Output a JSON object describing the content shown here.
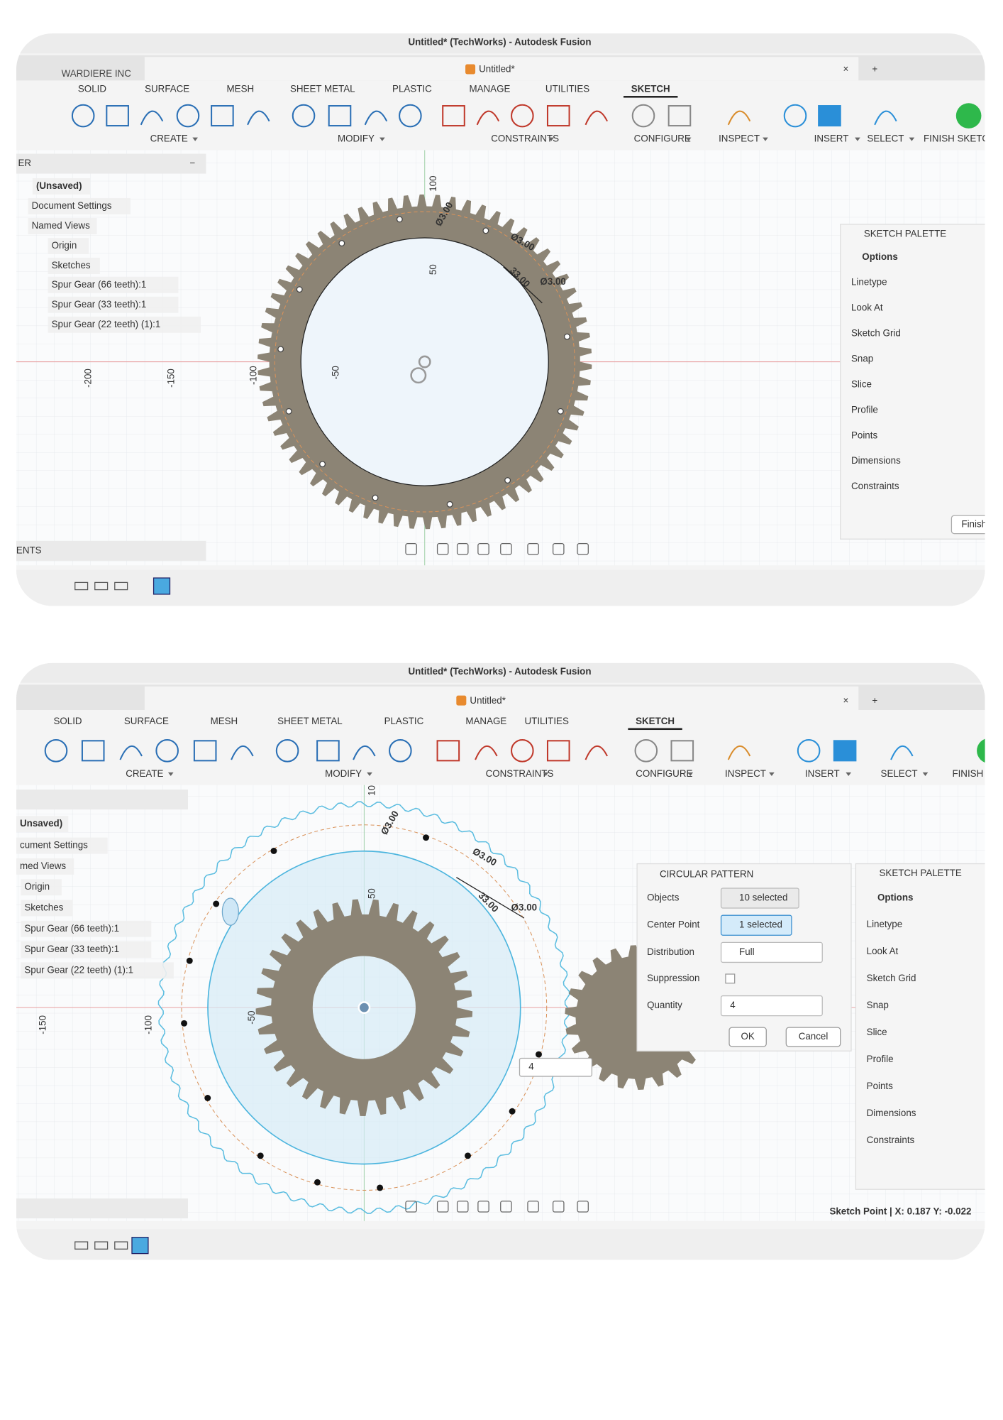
{
  "screens": [
    {
      "window_title": "Untitled* (TechWorks) - Autodesk Fusion",
      "document_tab": "Untitled*",
      "watermark": "WARDIERE INC",
      "toolbar_tabs": [
        "SOLID",
        "SURFACE",
        "MESH",
        "SHEET METAL",
        "PLASTIC",
        "MANAGE",
        "UTILITIES",
        "SKETCH"
      ],
      "toolbar_groups": [
        "CREATE",
        "MODIFY",
        "CONSTRAINTS",
        "CONFIGURE",
        "INSPECT",
        "INSERT",
        "SELECT",
        "FINISH SKETCH"
      ],
      "browser": {
        "header": "ER",
        "items": [
          "(Unsaved)",
          "Document Settings",
          "Named Views",
          "Origin",
          "Sketches",
          "Spur Gear (66 teeth):1",
          "Spur Gear (33 teeth):1",
          "Spur Gear (22 teeth) (1):1"
        ]
      },
      "comments": "ENTS",
      "axis_labels": [
        "100",
        "50",
        "-200",
        "-150",
        "-100",
        "-50"
      ],
      "dimensions": [
        "Ø3.00",
        "Ø3.00",
        "33.00",
        "Ø3.00"
      ],
      "palette": {
        "title": "SKETCH PALETTE",
        "section": "Options",
        "rows": [
          "Linetype",
          "Look At",
          "Sketch Grid",
          "Snap",
          "Slice",
          "Profile",
          "Points",
          "Dimensions",
          "Constraints"
        ],
        "button": "Finish"
      }
    },
    {
      "window_title": "Untitled* (TechWorks) - Autodesk Fusion",
      "document_tab": "Untitled*",
      "toolbar_tabs": [
        "SOLID",
        "SURFACE",
        "MESH",
        "SHEET METAL",
        "PLASTIC",
        "MANAGE",
        "UTILITIES",
        "SKETCH"
      ],
      "toolbar_groups": [
        "CREATE",
        "MODIFY",
        "CONSTRAINTS",
        "CONFIGURE",
        "INSPECT",
        "INSERT",
        "SELECT",
        "FINISH"
      ],
      "browser": {
        "items": [
          "Unsaved)",
          "cument Settings",
          "med Views",
          "Origin",
          "Sketches",
          "Spur Gear (66 teeth):1",
          "Spur Gear (33 teeth):1",
          "Spur Gear (22 teeth) (1):1"
        ]
      },
      "axis_labels": [
        "10",
        "50",
        "-150",
        "-100",
        "-50"
      ],
      "dimensions": [
        "Ø3.00",
        "Ø3.00",
        "33.00",
        "Ø3.00"
      ],
      "dialog": {
        "title": "CIRCULAR PATTERN",
        "rows": [
          {
            "label": "Objects",
            "value": "10 selected"
          },
          {
            "label": "Center Point",
            "value": "1 selected"
          },
          {
            "label": "Distribution",
            "value": "Full"
          },
          {
            "label": "Suppression"
          },
          {
            "label": "Quantity",
            "value": "4"
          }
        ],
        "buttons": [
          "OK",
          "Cancel"
        ]
      },
      "quantity_input": "4",
      "palette": {
        "title": "SKETCH PALETTE",
        "section": "Options",
        "rows": [
          "Linetype",
          "Look At",
          "Sketch Grid",
          "Snap",
          "Slice",
          "Profile",
          "Points",
          "Dimensions",
          "Constraints"
        ]
      },
      "status": "Sketch Point | X: 0.187 Y: -0.022"
    }
  ]
}
